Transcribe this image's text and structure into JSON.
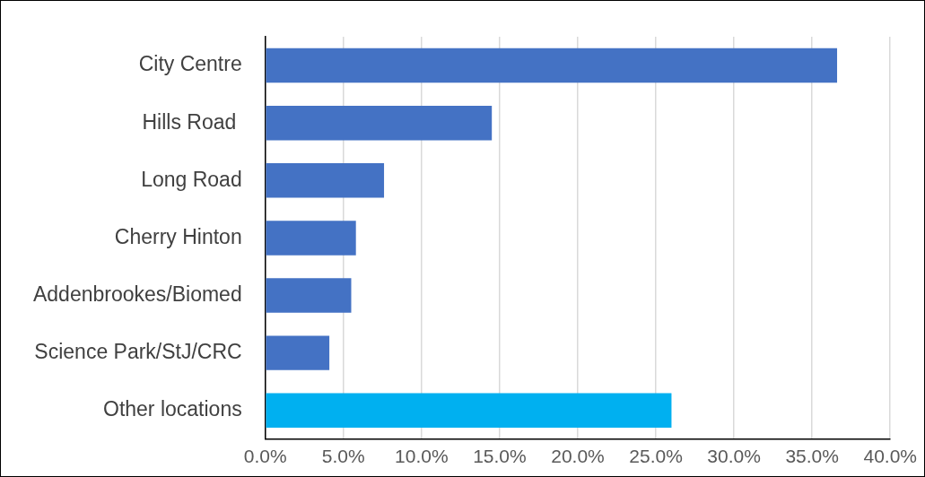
{
  "chart_data": {
    "type": "bar",
    "orientation": "horizontal",
    "categories": [
      "City Centre",
      "Hills Road ",
      "Long Road",
      "Cherry Hinton",
      "Addenbrookes/Biomed",
      "Science Park/StJ/CRC",
      "Other locations"
    ],
    "values": [
      36.6,
      14.5,
      7.6,
      5.8,
      5.5,
      4.1,
      26.0
    ],
    "colors": [
      "#4472c4",
      "#4472c4",
      "#4472c4",
      "#4472c4",
      "#4472c4",
      "#4472c4",
      "#00b0f0"
    ],
    "xlim": [
      0,
      40
    ],
    "xticks": [
      {
        "value": 0,
        "label": "0.0%"
      },
      {
        "value": 5,
        "label": "5.0%"
      },
      {
        "value": 10,
        "label": "10.0%"
      },
      {
        "value": 15,
        "label": "15.0%"
      },
      {
        "value": 20,
        "label": "20.0%"
      },
      {
        "value": 25,
        "label": "25.0%"
      },
      {
        "value": 30,
        "label": "30.0%"
      },
      {
        "value": 35,
        "label": "35.0%"
      },
      {
        "value": 40,
        "label": "40.0%"
      }
    ],
    "grid": "x",
    "legend": false
  }
}
